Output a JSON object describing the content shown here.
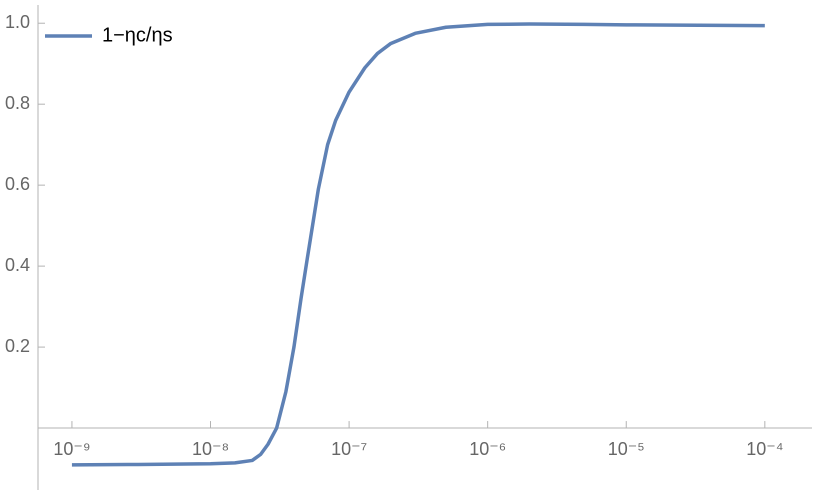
{
  "chart_data": {
    "type": "line",
    "xscale": "log",
    "x": [
      1e-09,
      3e-09,
      1e-08,
      1.5e-08,
      2e-08,
      2.3e-08,
      2.6e-08,
      3e-08,
      3.5e-08,
      4e-08,
      4.5e-08,
      5e-08,
      6e-08,
      7e-08,
      8e-08,
      1e-07,
      1.3e-07,
      1.6e-07,
      2e-07,
      3e-07,
      5e-07,
      1e-06,
      2e-06,
      5e-06,
      1e-05,
      0.0001
    ],
    "series": [
      {
        "name": "1−ηc/ηs",
        "color": "#5e81b5",
        "values": [
          -0.091,
          -0.09,
          -0.088,
          -0.086,
          -0.08,
          -0.065,
          -0.04,
          0.0,
          0.09,
          0.2,
          0.32,
          0.42,
          0.59,
          0.7,
          0.76,
          0.83,
          0.89,
          0.925,
          0.95,
          0.975,
          0.99,
          0.997,
          0.998,
          0.997,
          0.996,
          0.994
        ]
      }
    ],
    "xlim": [
      5.69e-10,
      0.000219
    ],
    "ylim": [
      -0.153,
      1.045
    ],
    "xticks": [
      {
        "value": 1e-09,
        "label": "10⁻⁹"
      },
      {
        "value": 1e-08,
        "label": "10⁻⁸"
      },
      {
        "value": 1e-07,
        "label": "10⁻⁷"
      },
      {
        "value": 1e-06,
        "label": "10⁻⁶"
      },
      {
        "value": 1e-05,
        "label": "10⁻⁵"
      },
      {
        "value": 0.0001,
        "label": "10⁻⁴"
      }
    ],
    "yticks": [
      0.2,
      0.4,
      0.6,
      0.8,
      {
        "value": 1,
        "label": "1.0"
      }
    ],
    "legend": "top-left"
  }
}
